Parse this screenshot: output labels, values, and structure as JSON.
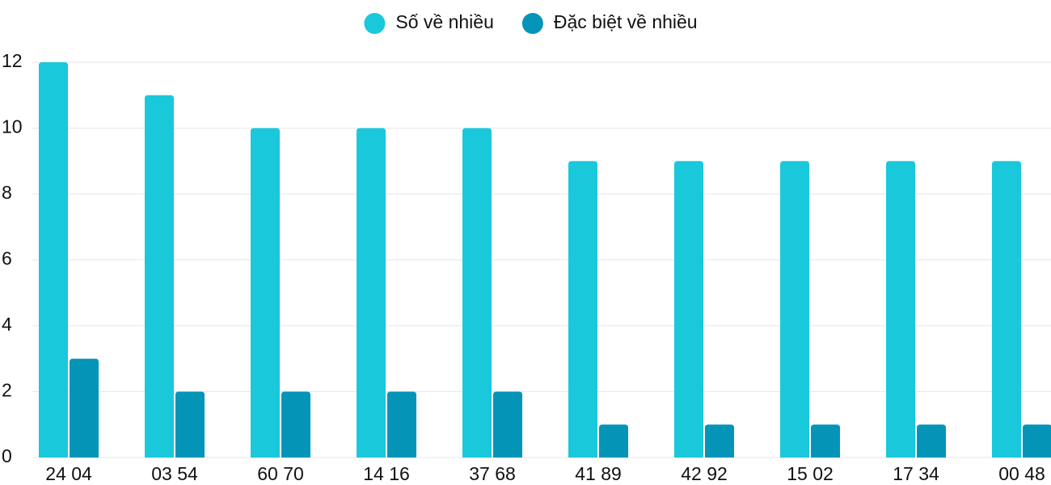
{
  "chart_data": {
    "type": "bar",
    "categories": [
      "24 04",
      "03 54",
      "60 70",
      "14 16",
      "37 68",
      "41 89",
      "42 92",
      "15 02",
      "17 34",
      "00 48"
    ],
    "series": [
      {
        "name": "Số về nhiều",
        "color": "#1ac8db",
        "values": [
          12,
          11,
          10,
          10,
          10,
          9,
          9,
          9,
          9,
          9
        ]
      },
      {
        "name": "Đặc biệt về nhiều",
        "color": "#0494b8",
        "values": [
          3,
          2,
          2,
          2,
          2,
          1,
          1,
          1,
          1,
          1
        ]
      }
    ],
    "ylim": [
      0,
      12
    ],
    "yticks": [
      0,
      2,
      4,
      6,
      8,
      10,
      12
    ],
    "grid": true,
    "legend": "top"
  }
}
